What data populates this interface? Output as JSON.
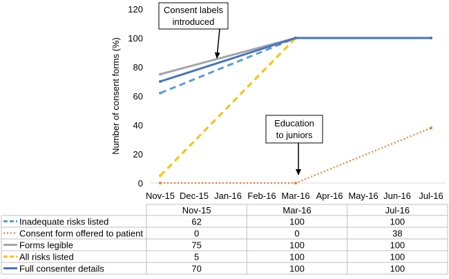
{
  "chart_data": {
    "type": "line",
    "title": "",
    "xlabel": "",
    "ylabel": "Number of consent forms (%)",
    "ylim": [
      0,
      120
    ],
    "yticks": [
      0,
      20,
      40,
      60,
      80,
      100,
      120
    ],
    "grid": false,
    "x_categories": [
      "Nov-15",
      "Dec-15",
      "Jan-16",
      "Feb-16",
      "Mar-16",
      "Apr-16",
      "May-16",
      "Jun-16",
      "Jul-16"
    ],
    "series": [
      {
        "name": "Inadequate risks listed",
        "color": "#5b9bd5",
        "style": "dashed",
        "points": [
          {
            "x": "Nov-15",
            "y": 62
          },
          {
            "x": "Mar-16",
            "y": 100
          },
          {
            "x": "Jul-16",
            "y": 100
          }
        ]
      },
      {
        "name": "Consent form offered to patient",
        "color": "#ed7d31",
        "style": "dotted",
        "points": [
          {
            "x": "Nov-15",
            "y": 0
          },
          {
            "x": "Mar-16",
            "y": 0
          },
          {
            "x": "Jul-16",
            "y": 38
          }
        ]
      },
      {
        "name": "Forms legible",
        "color": "#a5a5a5",
        "style": "solid",
        "points": [
          {
            "x": "Nov-15",
            "y": 75
          },
          {
            "x": "Mar-16",
            "y": 100
          },
          {
            "x": "Jul-16",
            "y": 100
          }
        ]
      },
      {
        "name": "All risks listed",
        "color": "#ffc000",
        "style": "dashed",
        "points": [
          {
            "x": "Nov-15",
            "y": 5
          },
          {
            "x": "Mar-16",
            "y": 100
          },
          {
            "x": "Jul-16",
            "y": 100
          }
        ]
      },
      {
        "name": "Full consenter details",
        "color": "#4472c4",
        "style": "solid",
        "points": [
          {
            "x": "Nov-15",
            "y": 70
          },
          {
            "x": "Mar-16",
            "y": 100
          },
          {
            "x": "Jul-16",
            "y": 100
          }
        ]
      }
    ],
    "annotations": [
      {
        "lines": [
          "Consent labels",
          "introduced"
        ],
        "target": {
          "x": "Dec-15",
          "y": 83
        }
      },
      {
        "lines": [
          "Education",
          "to juniors"
        ],
        "target": {
          "x": "Mar-16",
          "y": 0
        }
      }
    ],
    "data_table": {
      "columns": [
        "Nov-15",
        "Mar-16",
        "Jul-16"
      ],
      "rows": [
        {
          "series": "Inadequate risks listed",
          "values": [
            "62",
            "100",
            "100"
          ]
        },
        {
          "series": "Consent form offered to patient",
          "values": [
            "0",
            "0",
            "38"
          ]
        },
        {
          "series": "Forms legible",
          "values": [
            "75",
            "100",
            "100"
          ]
        },
        {
          "series": "All risks listed",
          "values": [
            "5",
            "100",
            "100"
          ]
        },
        {
          "series": "Full consenter details",
          "values": [
            "70",
            "100",
            "100"
          ]
        }
      ]
    }
  }
}
